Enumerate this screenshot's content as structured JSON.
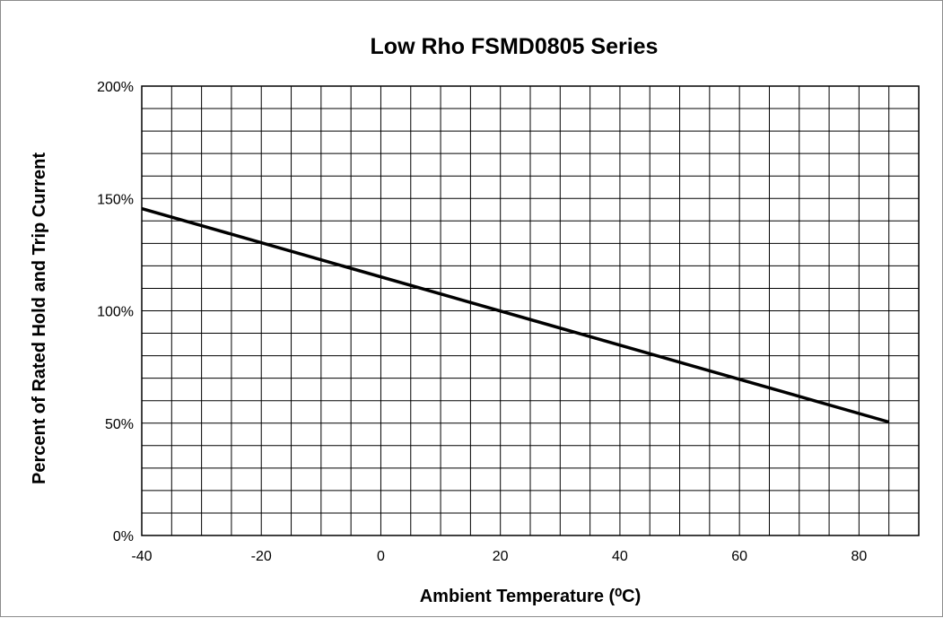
{
  "chart_data": {
    "type": "line",
    "title": "Low Rho FSMD0805 Series",
    "xlabel": "Ambient Temperature (⁰C)",
    "ylabel": "Percent of Rated Hold  and Trip Current",
    "xlim": [
      -40,
      90
    ],
    "ylim": [
      0,
      200
    ],
    "x_ticks": [
      -40,
      -20,
      0,
      20,
      40,
      60,
      80
    ],
    "x_tick_labels": [
      "-40",
      "-20",
      "0",
      "20",
      "40",
      "60",
      "80"
    ],
    "y_ticks": [
      0,
      50,
      100,
      150,
      200
    ],
    "y_tick_labels": [
      "0%",
      "50%",
      "100%",
      "150%",
      "200%"
    ],
    "x_minor_step": 5,
    "y_minor_step": 10,
    "grid": true,
    "series": [
      {
        "x": [
          -40,
          85
        ],
        "y": [
          145.5,
          50.5
        ],
        "color": "#000000"
      }
    ]
  }
}
